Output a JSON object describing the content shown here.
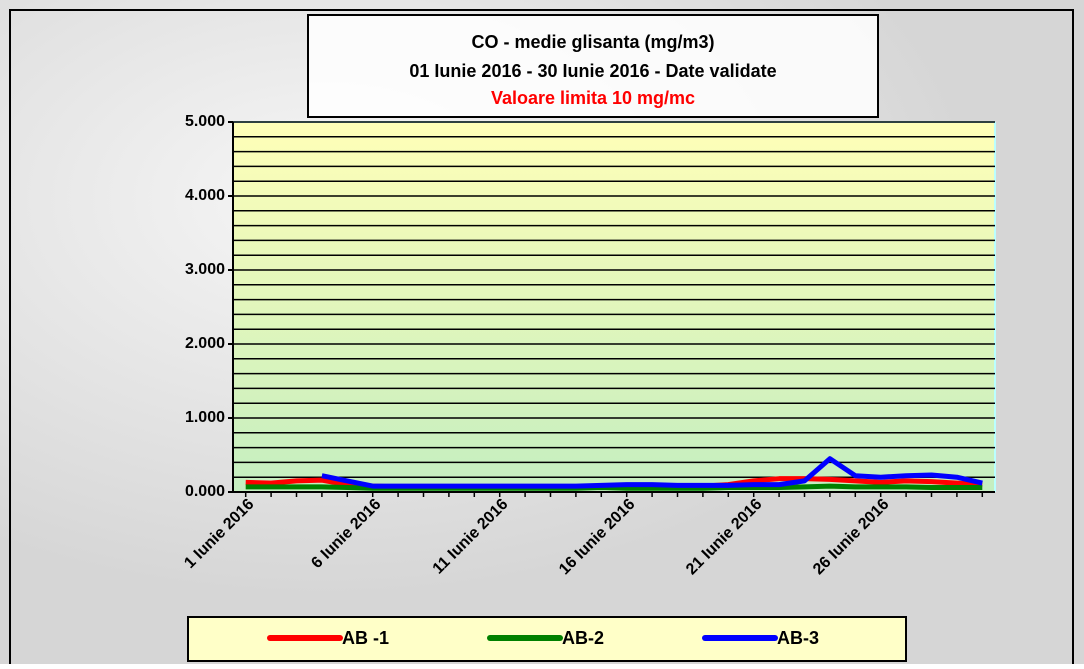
{
  "chart_data": {
    "type": "line",
    "title": "CO  - medie glisanta (mg/m3)",
    "subtitle": "01 Iunie 2016  -  30 Iunie 2016 - Date validate",
    "annotation": "Valoare limita 10 mg/mc",
    "categories": [
      "1 Iunie 2016",
      null,
      null,
      null,
      null,
      "6 Iunie 2016",
      null,
      null,
      null,
      null,
      "11 Iunie 2016",
      null,
      null,
      null,
      null,
      "16 Iunie 2016",
      null,
      null,
      null,
      null,
      "21 Iunie 2016",
      null,
      null,
      null,
      null,
      "26 Iunie 2016",
      null,
      null,
      null,
      null
    ],
    "series": [
      {
        "name": "AB -1",
        "color": "#ff0000",
        "values": [
          0.13,
          0.12,
          0.15,
          0.16,
          0.1,
          0.08,
          0.07,
          0.07,
          0.07,
          0.07,
          0.07,
          0.07,
          0.07,
          0.07,
          0.08,
          0.08,
          0.08,
          0.08,
          0.08,
          0.1,
          0.15,
          0.18,
          0.18,
          0.17,
          0.15,
          0.13,
          0.15,
          0.14,
          0.12,
          0.1
        ]
      },
      {
        "name": "AB-2",
        "color": "#008000",
        "values": [
          0.07,
          0.07,
          0.07,
          0.07,
          0.06,
          0.05,
          0.05,
          0.05,
          0.05,
          0.05,
          0.05,
          0.05,
          0.05,
          0.05,
          0.06,
          0.05,
          0.05,
          0.05,
          0.05,
          0.06,
          0.06,
          0.06,
          0.07,
          0.08,
          0.07,
          0.07,
          0.07,
          0.06,
          0.06,
          0.06
        ]
      },
      {
        "name": "AB-3",
        "color": "#0000ff",
        "values": [
          null,
          null,
          null,
          0.22,
          0.15,
          0.08,
          0.08,
          0.08,
          0.08,
          0.08,
          0.08,
          0.08,
          0.08,
          0.08,
          0.09,
          0.1,
          0.1,
          0.09,
          0.09,
          0.09,
          0.1,
          0.1,
          0.15,
          0.45,
          0.22,
          0.2,
          0.22,
          0.23,
          0.2,
          0.12
        ]
      }
    ],
    "ylim": [
      0,
      5
    ],
    "yticks": [
      {
        "value": 0,
        "label": "0.000"
      },
      {
        "value": 1,
        "label": "1.000"
      },
      {
        "value": 2,
        "label": "2.000"
      },
      {
        "value": 3,
        "label": "3.000"
      },
      {
        "value": 4,
        "label": "4.000"
      },
      {
        "value": 5,
        "label": "5.000"
      }
    ],
    "minor_yticks": [
      0.2,
      0.4,
      0.6,
      0.8,
      1.2,
      1.4,
      1.6,
      1.8,
      2.2,
      2.4,
      2.6,
      2.8,
      3.2,
      3.4,
      3.6,
      3.8,
      4.2,
      4.4,
      4.6,
      4.8
    ],
    "grid": true,
    "legend": "bottom"
  }
}
